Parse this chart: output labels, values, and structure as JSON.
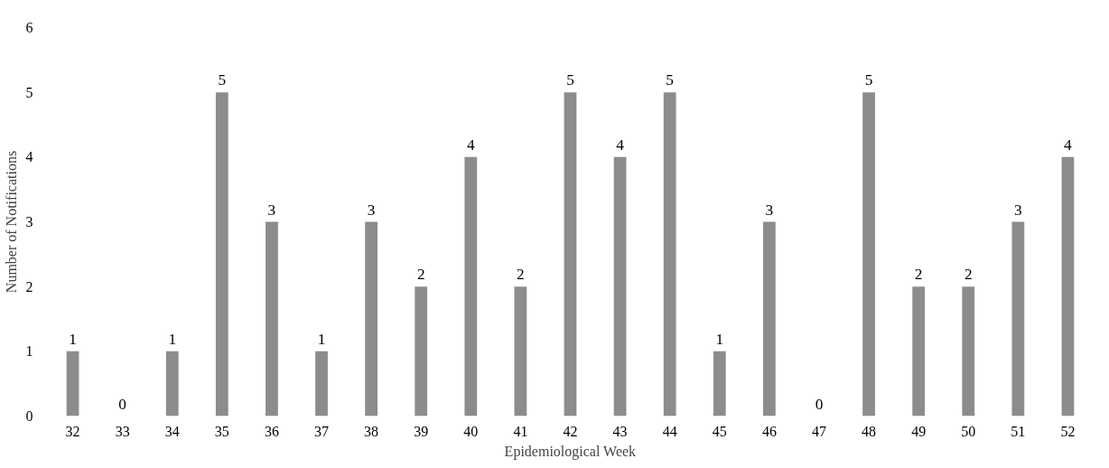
{
  "chart_data": {
    "type": "bar",
    "xlabel": "Epidemiological Week",
    "ylabel": "Number of Notifications",
    "categories": [
      "32",
      "33",
      "34",
      "35",
      "36",
      "37",
      "38",
      "39",
      "40",
      "41",
      "42",
      "43",
      "44",
      "45",
      "46",
      "47",
      "48",
      "49",
      "50",
      "51",
      "52"
    ],
    "values": [
      1,
      0,
      1,
      5,
      3,
      1,
      3,
      2,
      4,
      2,
      5,
      4,
      5,
      1,
      3,
      0,
      5,
      2,
      2,
      3,
      4
    ],
    "color": "#8c8c8c",
    "ylim": [
      0,
      6
    ],
    "yticks": [
      0,
      1,
      2,
      3,
      4,
      5,
      6
    ],
    "grid": false,
    "data_labels": true
  }
}
